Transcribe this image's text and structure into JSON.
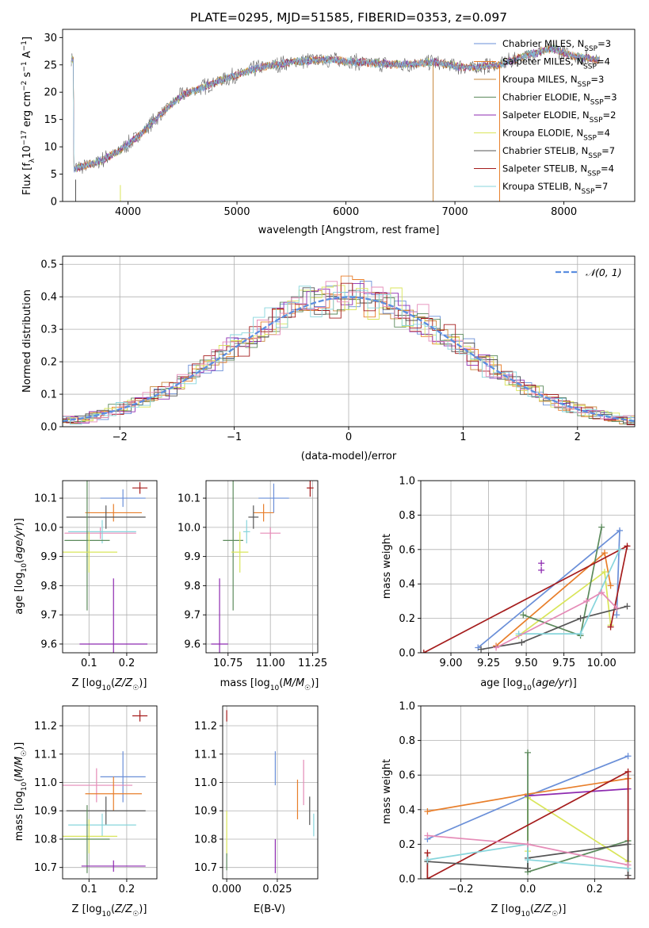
{
  "colors": {
    "Chabrier MILES": "#6a8fd8",
    "Salpeter MILES": "#e87e2a",
    "Kroupa MILES": "#c8873a",
    "Chabrier ELODIE": "#5c8a5c",
    "Salpeter ELODIE": "#8e2bb0",
    "Kroupa ELODIE": "#d9e55a",
    "Chabrier STELIB": "#555555",
    "Salpeter STELIB": "#a51c1c",
    "Kroupa STELIB": "#87d5dc",
    "pink": "#e58bb7",
    "grid": "#b0b0b0"
  },
  "chart_data": [
    {
      "id": "spectrum",
      "type": "line",
      "title": "PLATE=0295, MJD=51585, FIBERID=0353, z=0.097",
      "xlabel": "wavelength [Angstrom, rest frame]",
      "ylabel": "Flux [f_λ 10^-17 erg cm^-2 s^-1 A^-1]",
      "xlim": [
        3400,
        8650
      ],
      "ylim": [
        0,
        31.5
      ],
      "xticks": [
        4000,
        5000,
        6000,
        7000,
        8000
      ],
      "yticks": [
        0,
        5,
        10,
        15,
        20,
        25,
        30
      ],
      "grid": false,
      "legend_position": "top-right",
      "legend": [
        {
          "name": "Chabrier MILES",
          "nssp": "3"
        },
        {
          "name": "Salpeter MILES",
          "nssp": "4"
        },
        {
          "name": "Kroupa MILES",
          "nssp": "3"
        },
        {
          "name": "Chabrier ELODIE",
          "nssp": "3"
        },
        {
          "name": "Salpeter ELODIE",
          "nssp": "2"
        },
        {
          "name": "Kroupa ELODIE",
          "nssp": "4"
        },
        {
          "name": "Chabrier STELIB",
          "nssp": "7"
        },
        {
          "name": "Salpeter STELIB",
          "nssp": "4"
        },
        {
          "name": "Kroupa STELIB",
          "nssp": "7"
        }
      ],
      "continuum": [
        [
          3500,
          6
        ],
        [
          3700,
          7
        ],
        [
          3900,
          9
        ],
        [
          4000,
          10.5
        ],
        [
          4100,
          12
        ],
        [
          4300,
          16
        ],
        [
          4500,
          19.5
        ],
        [
          4700,
          21
        ],
        [
          4900,
          22.5
        ],
        [
          5200,
          24.5
        ],
        [
          5500,
          25.5
        ],
        [
          5800,
          26
        ],
        [
          6100,
          25.5
        ],
        [
          6500,
          25
        ],
        [
          6800,
          25.5
        ],
        [
          7100,
          24.5
        ],
        [
          7400,
          25
        ],
        [
          7700,
          27
        ],
        [
          7900,
          28
        ],
        [
          8100,
          26.5
        ],
        [
          8300,
          26
        ]
      ],
      "vertical_lines": [
        {
          "x": 3520,
          "y0": 0,
          "y1": 4,
          "series": "Chabrier STELIB"
        },
        {
          "x": 3930,
          "y0": 0,
          "y1": 3,
          "series": "Kroupa ELODIE"
        },
        {
          "x": 6800,
          "y0": 0,
          "y1": 25.5,
          "series": "Kroupa MILES"
        },
        {
          "x": 7410,
          "y0": 0,
          "y1": 25,
          "series": "Salpeter MILES"
        }
      ]
    },
    {
      "id": "residuals",
      "type": "line",
      "xlabel": "(data-model)/error",
      "ylabel": "Normed distribution",
      "xlim": [
        -2.5,
        2.5
      ],
      "ylim": [
        0,
        0.525
      ],
      "xticks": [
        -2,
        -1,
        0,
        1,
        2
      ],
      "yticks": [
        0.0,
        0.1,
        0.2,
        0.3,
        0.4,
        0.5
      ],
      "grid": true,
      "legend_position": "top-right",
      "legend": [
        "𝒩(0, 1)"
      ]
    },
    {
      "id": "age_vs_Z",
      "type": "scatter",
      "xlabel": "Z [log10(Z/Z☉)]",
      "ylabel": "age [log10(age/yr)]",
      "xlim": [
        0.03,
        0.28
      ],
      "ylim": [
        9.57,
        10.16
      ],
      "xticks": [
        0.1,
        0.2
      ],
      "yticks": [
        9.6,
        9.7,
        9.8,
        9.9,
        10.0,
        10.1
      ],
      "grid": true,
      "points": [
        {
          "series": "Chabrier MILES",
          "x": 0.19,
          "y": 10.1,
          "xerr": 0.06,
          "yerr": 0.03
        },
        {
          "series": "Salpeter STELIB",
          "x": 0.235,
          "y": 10.135,
          "xerr": 0.02,
          "yerr": 0.02
        },
        {
          "series": "Salpeter MILES",
          "x": 0.165,
          "y": 10.05,
          "xerr": 0.075,
          "yerr": 0.03
        },
        {
          "series": "Chabrier STELIB",
          "x": 0.145,
          "y": 10.035,
          "xerr": 0.105,
          "yerr": 0.04
        },
        {
          "series": "pink",
          "x": 0.13,
          "y": 9.98,
          "xerr": 0.095,
          "yerr": 0.02
        },
        {
          "series": "Kroupa STELIB",
          "x": 0.135,
          "y": 9.985,
          "xerr": 0.09,
          "yerr": 0.04
        },
        {
          "series": "Chabrier ELODIE",
          "x": 0.095,
          "y": 9.955,
          "xerr": 0.06,
          "yerr": 0.24
        },
        {
          "series": "Kroupa ELODIE",
          "x": 0.1,
          "y": 9.915,
          "xerr": 0.075,
          "yerr": 0.07
        },
        {
          "series": "Salpeter ELODIE",
          "x": 0.165,
          "y": 9.6,
          "xerr": 0.09,
          "yerr": 0.225
        }
      ]
    },
    {
      "id": "age_vs_mass",
      "type": "scatter",
      "xlabel": "mass [log10(M/M☉)]",
      "xlim": [
        10.62,
        11.28
      ],
      "ylim": [
        9.57,
        10.16
      ],
      "xticks": [
        10.75,
        11.0,
        11.25
      ],
      "yticks": [
        9.6,
        9.7,
        9.8,
        9.9,
        10.0,
        10.1
      ],
      "grid": true,
      "points": [
        {
          "series": "Chabrier MILES",
          "x": 11.02,
          "y": 10.1,
          "xerr": 0.09,
          "yerr": 0.05
        },
        {
          "series": "Salpeter STELIB",
          "x": 11.235,
          "y": 10.135,
          "xerr": 0.02,
          "yerr": 0.03
        },
        {
          "series": "Salpeter MILES",
          "x": 10.96,
          "y": 10.05,
          "xerr": 0.06,
          "yerr": 0.03
        },
        {
          "series": "Chabrier STELIB",
          "x": 10.9,
          "y": 10.035,
          "xerr": 0.03,
          "yerr": 0.04
        },
        {
          "series": "pink",
          "x": 11.0,
          "y": 9.98,
          "xerr": 0.06,
          "yerr": 0.02
        },
        {
          "series": "Kroupa STELIB",
          "x": 10.86,
          "y": 9.985,
          "xerr": 0.02,
          "yerr": 0.04
        },
        {
          "series": "Chabrier ELODIE",
          "x": 10.78,
          "y": 9.955,
          "xerr": 0.06,
          "yerr": 0.24
        },
        {
          "series": "Kroupa ELODIE",
          "x": 10.82,
          "y": 9.915,
          "xerr": 0.05,
          "yerr": 0.07
        },
        {
          "series": "Salpeter ELODIE",
          "x": 10.7,
          "y": 9.6,
          "xerr": 0.05,
          "yerr": 0.225
        }
      ]
    },
    {
      "id": "weight_vs_age",
      "type": "line",
      "xlabel": "age [log10(age/yr)]",
      "ylabel": "mass weight",
      "xlim": [
        8.8,
        10.22
      ],
      "ylim": [
        0.0,
        1.0
      ],
      "xticks": [
        9.0,
        9.25,
        9.5,
        9.75,
        10.0
      ],
      "yticks": [
        0.0,
        0.2,
        0.4,
        0.6,
        0.8,
        1.0
      ],
      "grid": true,
      "series": [
        {
          "name": "Chabrier MILES",
          "x": [
            9.18,
            10.12,
            10.1
          ],
          "y": [
            0.03,
            0.71,
            0.22
          ]
        },
        {
          "name": "Salpeter MILES",
          "x": [
            9.3,
            10.02,
            10.06
          ],
          "y": [
            0.04,
            0.58,
            0.39
          ]
        },
        {
          "name": "Kroupa ELODIE",
          "x": [
            9.45,
            10.02,
            10.06
          ],
          "y": [
            0.1,
            0.47,
            0.16
          ]
        },
        {
          "name": "Chabrier ELODIE",
          "x": [
            9.48,
            9.86,
            10.0
          ],
          "y": [
            0.22,
            0.1,
            0.73
          ]
        },
        {
          "name": "Salpeter STELIB",
          "x": [
            8.82,
            10.17,
            10.06
          ],
          "y": [
            0.0,
            0.62,
            0.15
          ]
        },
        {
          "name": "Chabrier STELIB",
          "x": [
            9.2,
            9.47,
            9.86,
            10.17
          ],
          "y": [
            0.02,
            0.06,
            0.2,
            0.27
          ]
        },
        {
          "name": "Kroupa STELIB",
          "x": [
            9.45,
            9.86,
            10.12
          ],
          "y": [
            0.11,
            0.11,
            0.6
          ]
        },
        {
          "name": "pink",
          "x": [
            9.3,
            9.9,
            10.0,
            10.1
          ],
          "y": [
            0.03,
            0.3,
            0.35,
            0.26
          ]
        }
      ],
      "markers": [
        {
          "series": "Salpeter ELODIE",
          "x": 9.6,
          "y": [
            0.48,
            0.52
          ]
        }
      ]
    },
    {
      "id": "mass_vs_Z",
      "type": "scatter",
      "xlabel": "Z [log10(Z/Z☉)]",
      "ylabel": "mass [log10(M/M☉)]",
      "xlim": [
        0.03,
        0.28
      ],
      "ylim": [
        10.66,
        11.27
      ],
      "xticks": [
        0.1,
        0.2
      ],
      "yticks": [
        10.7,
        10.8,
        10.9,
        11.0,
        11.1,
        11.2
      ],
      "grid": true,
      "points": [
        {
          "series": "Salpeter STELIB",
          "x": 0.235,
          "y": 11.235,
          "xerr": 0.02,
          "yerr": 0.02
        },
        {
          "series": "Chabrier MILES",
          "x": 0.19,
          "y": 11.02,
          "xerr": 0.06,
          "yerr": 0.09
        },
        {
          "series": "pink",
          "x": 0.12,
          "y": 10.99,
          "xerr": 0.095,
          "yerr": 0.06
        },
        {
          "series": "Salpeter MILES",
          "x": 0.165,
          "y": 10.96,
          "xerr": 0.075,
          "yerr": 0.06
        },
        {
          "series": "Chabrier STELIB",
          "x": 0.145,
          "y": 10.9,
          "xerr": 0.105,
          "yerr": 0.05
        },
        {
          "series": "Kroupa STELIB",
          "x": 0.135,
          "y": 10.85,
          "xerr": 0.09,
          "yerr": 0.04
        },
        {
          "series": "Kroupa ELODIE",
          "x": 0.1,
          "y": 10.81,
          "xerr": 0.075,
          "yerr": 0.06
        },
        {
          "series": "Chabrier ELODIE",
          "x": 0.095,
          "y": 10.8,
          "xerr": 0.06,
          "yerr": 0.12
        },
        {
          "series": "Salpeter ELODIE",
          "x": 0.165,
          "y": 10.705,
          "xerr": 0.085,
          "yerr": 0.02
        }
      ]
    },
    {
      "id": "mass_vs_ebv",
      "type": "scatter",
      "xlabel": "E(B-V)",
      "xlim": [
        -0.002,
        0.045
      ],
      "ylim": [
        10.66,
        11.27
      ],
      "xticks": [
        0.0,
        0.025
      ],
      "yticks": [
        10.7,
        10.8,
        10.9,
        11.0,
        11.1,
        11.2
      ],
      "grid": true,
      "points": [
        {
          "series": "Salpeter STELIB",
          "x": 0.0,
          "y": 11.235,
          "yerr": 0.02
        },
        {
          "series": "Chabrier MILES",
          "x": 0.024,
          "y": 11.05,
          "yerr": 0.06
        },
        {
          "series": "pink",
          "x": 0.038,
          "y": 11.0,
          "yerr": 0.08
        },
        {
          "series": "Salpeter MILES",
          "x": 0.035,
          "y": 10.94,
          "yerr": 0.07
        },
        {
          "series": "Chabrier STELIB",
          "x": 0.041,
          "y": 10.9,
          "yerr": 0.05
        },
        {
          "series": "Kroupa STELIB",
          "x": 0.043,
          "y": 10.85,
          "yerr": 0.04
        },
        {
          "series": "Kroupa ELODIE",
          "x": 0.0,
          "y": 10.82,
          "yerr": 0.08
        },
        {
          "series": "Chabrier ELODIE",
          "x": 0.0,
          "y": 10.72,
          "yerr": 0.03
        },
        {
          "series": "Salpeter ELODIE",
          "x": 0.024,
          "y": 10.74,
          "yerr": 0.06
        }
      ]
    },
    {
      "id": "weight_vs_Z",
      "type": "line",
      "xlabel": "Z [log10(Z/Z☉)]",
      "ylabel": "mass weight",
      "xlim": [
        -0.32,
        0.32
      ],
      "ylim": [
        0.0,
        1.0
      ],
      "xticks": [
        -0.2,
        0.0,
        0.2
      ],
      "yticks": [
        0.0,
        0.2,
        0.4,
        0.6,
        0.8,
        1.0
      ],
      "grid": true,
      "series": [
        {
          "name": "Chabrier MILES",
          "x": [
            -0.3,
            0.0,
            0.3
          ],
          "y": [
            0.23,
            0.48,
            0.71
          ]
        },
        {
          "name": "Salpeter MILES",
          "x": [
            -0.3,
            0.0,
            0.3
          ],
          "y": [
            0.39,
            0.49,
            0.58
          ]
        },
        {
          "name": "Salpeter ELODIE",
          "x": [
            0.0,
            0.3
          ],
          "y": [
            0.48,
            0.52
          ]
        },
        {
          "name": "Kroupa ELODIE",
          "x": [
            0.0,
            0.0,
            0.3
          ],
          "y": [
            0.16,
            0.47,
            0.1
          ]
        },
        {
          "name": "Chabrier ELODIE",
          "x": [
            0.0,
            0.0,
            0.3
          ],
          "y": [
            0.73,
            0.04,
            0.22
          ]
        },
        {
          "name": "Salpeter STELIB",
          "x": [
            -0.3,
            -0.3,
            0.3,
            0.3
          ],
          "y": [
            0.15,
            0.0,
            0.62,
            0.0
          ]
        },
        {
          "name": "Chabrier STELIB",
          "x": [
            -0.3,
            0.0,
            0.0,
            0.3,
            0.3
          ],
          "y": [
            0.1,
            0.06,
            0.12,
            0.2,
            0.02
          ]
        },
        {
          "name": "Kroupa STELIB",
          "x": [
            -0.3,
            0.0,
            0.0,
            0.3
          ],
          "y": [
            0.11,
            0.2,
            0.11,
            0.06
          ]
        },
        {
          "name": "pink",
          "x": [
            -0.3,
            0.0,
            0.3
          ],
          "y": [
            0.25,
            0.2,
            0.08
          ]
        }
      ]
    }
  ]
}
